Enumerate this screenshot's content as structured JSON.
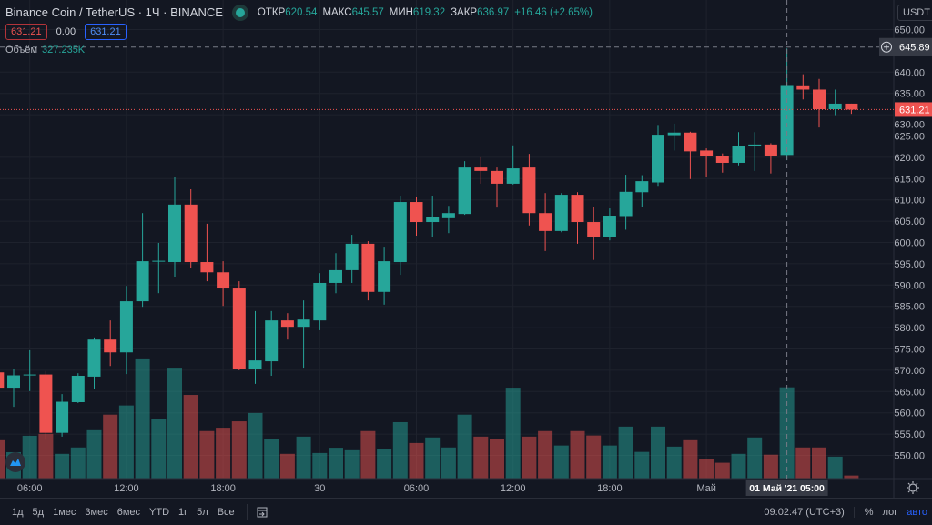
{
  "header": {
    "symbol": "Binance Coin / TetherUS · 1Ч · BINANCE",
    "open_label": "ОТКР",
    "open": "620.54",
    "high_label": "МАКС",
    "high": "645.57",
    "low_label": "МИН",
    "low": "619.32",
    "close_label": "ЗАКР",
    "close": "636.97",
    "change": "+16.46 (+2.65%)",
    "sell_price": "631.21",
    "spread": "0.00",
    "buy_price": "631.21",
    "volume_label": "Объём",
    "volume": "327.235K",
    "currency": "USDT"
  },
  "colors": {
    "up": "#26a69a",
    "down": "#ef5350",
    "background": "#131722",
    "accent": "#2962ff"
  },
  "crosshair": {
    "price_label": "645.89",
    "time_label": "01 Май '21   05:00",
    "icon": "plus-circle-icon"
  },
  "last_price": {
    "label": "631.21",
    "value": 631.21
  },
  "bottom_bar": {
    "ranges": [
      "1д",
      "5д",
      "1мес",
      "3мес",
      "6мес",
      "YTD",
      "1г",
      "5л",
      "Все"
    ],
    "calendar_icon": "calendar-goto-icon",
    "clock": "09:02:47 (UTC+3)",
    "percent": "%",
    "log": "лог",
    "auto": "авто"
  },
  "chart_data": {
    "type": "candlestick",
    "interval": "1h",
    "ylim": [
      546,
      653
    ],
    "y_ticks": [
      "650.00",
      "640.00",
      "635.00",
      "630.00",
      "625.00",
      "620.00",
      "615.00",
      "610.00",
      "605.00",
      "600.00",
      "595.00",
      "590.00",
      "585.00",
      "580.00",
      "575.00",
      "570.00",
      "565.00",
      "560.00",
      "555.00",
      "550.00"
    ],
    "x_ticks": [
      {
        "label": "06:00",
        "index": 2
      },
      {
        "label": "12:00",
        "index": 8
      },
      {
        "label": "18:00",
        "index": 14
      },
      {
        "label": "30",
        "index": 20
      },
      {
        "label": "06:00",
        "index": 26
      },
      {
        "label": "12:00",
        "index": 32
      },
      {
        "label": "18:00",
        "index": 38
      },
      {
        "label": "Май",
        "index": 44
      }
    ],
    "crosshair_index": 49,
    "grid": true,
    "candles": [
      [
        569.5,
        570.4,
        565.0,
        565.9,
        137
      ],
      [
        565.9,
        570.4,
        561.4,
        568.8,
        94
      ],
      [
        568.8,
        574.7,
        565.1,
        569.0,
        153
      ],
      [
        569.0,
        569.8,
        553.7,
        555.3,
        160
      ],
      [
        555.3,
        564.4,
        554.4,
        562.6,
        88
      ],
      [
        562.5,
        569.3,
        562.3,
        568.7,
        111
      ],
      [
        568.5,
        577.7,
        565.5,
        577.2,
        173
      ],
      [
        577.2,
        581.7,
        571.0,
        574.2,
        229
      ],
      [
        574.2,
        589.8,
        569.1,
        586.2,
        262
      ],
      [
        586.2,
        606.9,
        584.9,
        595.6,
        428
      ],
      [
        595.5,
        599.9,
        588.1,
        595.7,
        212
      ],
      [
        595.4,
        615.3,
        592.0,
        608.9,
        398
      ],
      [
        608.9,
        612.5,
        594.1,
        595.4,
        300
      ],
      [
        595.4,
        604.4,
        590.9,
        593.0,
        170
      ],
      [
        593.0,
        595.6,
        585.1,
        589.2,
        182
      ],
      [
        589.2,
        590.9,
        570.0,
        570.2,
        205
      ],
      [
        570.2,
        583.9,
        566.8,
        572.3,
        235
      ],
      [
        572.1,
        583.9,
        568.7,
        581.7,
        140
      ],
      [
        581.7,
        583.4,
        577.2,
        580.2,
        88
      ],
      [
        580.2,
        586.4,
        570.6,
        581.9,
        150
      ],
      [
        581.7,
        592.8,
        579.4,
        590.5,
        91
      ],
      [
        590.5,
        597.5,
        588.1,
        593.5,
        110
      ],
      [
        593.5,
        601.8,
        590.5,
        599.7,
        101
      ],
      [
        599.7,
        600.3,
        586.4,
        588.4,
        170
      ],
      [
        588.4,
        598.8,
        585.4,
        595.6,
        104
      ],
      [
        595.4,
        611.0,
        592.4,
        609.5,
        202
      ],
      [
        609.5,
        610.8,
        601.6,
        604.8,
        127
      ],
      [
        604.8,
        611.0,
        601.2,
        605.9,
        147
      ],
      [
        605.7,
        608.6,
        602.2,
        606.9,
        111
      ],
      [
        606.7,
        619.1,
        606.5,
        617.6,
        229
      ],
      [
        617.6,
        620.0,
        613.8,
        616.8,
        150
      ],
      [
        616.8,
        617.6,
        608.2,
        613.8,
        140
      ],
      [
        613.8,
        622.8,
        613.6,
        617.4,
        326
      ],
      [
        617.6,
        620.8,
        604.0,
        606.9,
        150
      ],
      [
        606.9,
        611.6,
        598.0,
        602.7,
        170
      ],
      [
        602.7,
        611.6,
        602.4,
        611.2,
        118
      ],
      [
        611.2,
        611.8,
        599.7,
        604.8,
        170
      ],
      [
        604.8,
        608.3,
        595.9,
        601.3,
        154
      ],
      [
        601.3,
        608.0,
        600.5,
        606.3,
        118
      ],
      [
        606.2,
        615.9,
        603.0,
        611.9,
        186
      ],
      [
        611.8,
        615.8,
        608.3,
        614.4,
        95
      ],
      [
        614.1,
        627.6,
        613.3,
        625.3,
        186
      ],
      [
        625.2,
        627.9,
        621.6,
        625.8,
        114
      ],
      [
        625.8,
        626.0,
        614.9,
        621.4,
        137
      ],
      [
        621.6,
        622.1,
        615.3,
        620.3,
        69
      ],
      [
        620.4,
        620.9,
        616.4,
        618.7,
        56
      ],
      [
        618.7,
        625.9,
        618.1,
        622.7,
        88
      ],
      [
        622.6,
        625.9,
        616.8,
        623.0,
        147
      ],
      [
        623.0,
        623.3,
        616.2,
        620.3,
        85
      ],
      [
        620.54,
        645.57,
        619.32,
        636.97,
        327.235
      ],
      [
        636.9,
        639.5,
        633.6,
        635.9,
        111
      ],
      [
        635.9,
        638.4,
        627.0,
        631.3,
        111
      ],
      [
        631.3,
        635.9,
        629.9,
        632.6,
        78
      ],
      [
        632.6,
        632.6,
        630.2,
        631.21,
        10
      ]
    ],
    "candle_fields": [
      "open",
      "high",
      "low",
      "close",
      "volume_K"
    ]
  }
}
